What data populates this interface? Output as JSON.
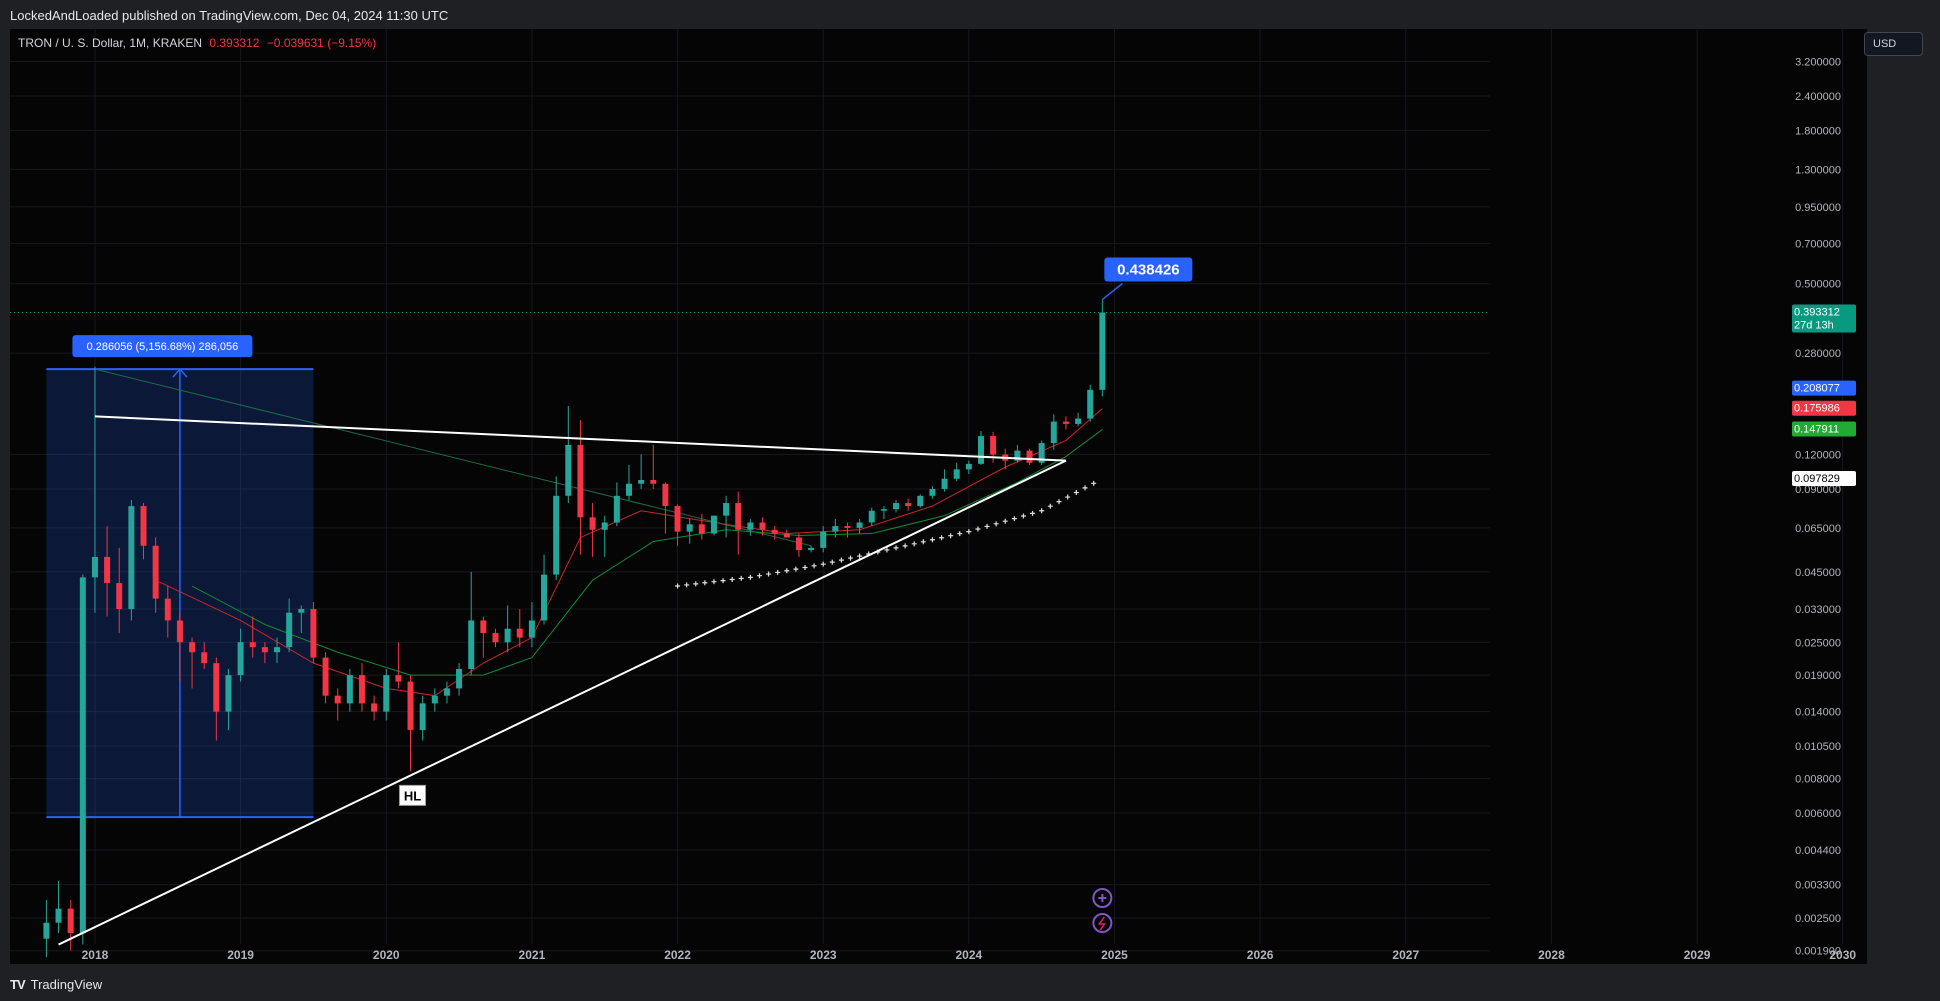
{
  "header": {
    "published": "LockedAndLoaded published on TradingView.com, Dec 04, 2024 11:30 UTC"
  },
  "legend": {
    "symbol": "TRON / U. S. Dollar, 1M, KRAKEN",
    "last": "0.393312",
    "change": "−0.039631 (−9.15%)"
  },
  "currency_button": "USD",
  "footer": {
    "brand": "TradingView"
  },
  "colors": {
    "up": "#26a69a",
    "down": "#f23645",
    "accent": "#2962ff",
    "background": "#050505"
  },
  "chart_data": {
    "type": "candlestick",
    "title": "TRON / U. S. Dollar, 1M, KRAKEN",
    "y_scale": "log",
    "ylim": [
      0.0017,
      4.2
    ],
    "xlim": [
      "2017-06",
      "2030-03"
    ],
    "y_ticks": [
      "3.200000",
      "2.400000",
      "1.800000",
      "1.300000",
      "0.950000",
      "0.700000",
      "0.500000",
      "0.280000",
      "0.120000",
      "0.090000",
      "0.065000",
      "0.045000",
      "0.033000",
      "0.025000",
      "0.019000",
      "0.014000",
      "0.010500",
      "0.008000",
      "0.006000",
      "0.004400",
      "0.003300",
      "0.002500",
      "0.001900"
    ],
    "x_ticks": [
      "2018",
      "2019",
      "2020",
      "2021",
      "2022",
      "2023",
      "2024",
      "2025",
      "2026",
      "2027",
      "2028",
      "2029",
      "2030"
    ],
    "price_labels": [
      {
        "value": "0.393312",
        "sub": "27d 13h",
        "color": "#089981"
      },
      {
        "value": "0.208077",
        "color": "#2962ff"
      },
      {
        "value": "0.175986",
        "color": "#f23645"
      },
      {
        "value": "0.147911",
        "color": "#22ab34"
      },
      {
        "value": "0.097829",
        "color": "#ffffff"
      }
    ],
    "annotations": {
      "measure_label": "0.286056 (5,156.68%) 286,056",
      "target_label": "0.438426",
      "hl_label": "HL"
    },
    "candles": [
      [
        "2017-09",
        0.0021,
        0.0029,
        0.0018,
        0.0024
      ],
      [
        "2017-10",
        0.0024,
        0.0034,
        0.0022,
        0.0027
      ],
      [
        "2017-11",
        0.0027,
        0.0029,
        0.0019,
        0.0022
      ],
      [
        "2017-12",
        0.0022,
        0.044,
        0.002,
        0.043
      ],
      [
        "2018-01",
        0.043,
        0.25,
        0.032,
        0.051
      ],
      [
        "2018-02",
        0.051,
        0.066,
        0.031,
        0.041
      ],
      [
        "2018-03",
        0.041,
        0.055,
        0.027,
        0.033
      ],
      [
        "2018-04",
        0.033,
        0.082,
        0.03,
        0.078
      ],
      [
        "2018-05",
        0.078,
        0.08,
        0.05,
        0.056
      ],
      [
        "2018-06",
        0.056,
        0.06,
        0.032,
        0.036
      ],
      [
        "2018-07",
        0.036,
        0.04,
        0.026,
        0.03
      ],
      [
        "2018-08",
        0.03,
        0.032,
        0.018,
        0.025
      ],
      [
        "2018-09",
        0.025,
        0.026,
        0.017,
        0.023
      ],
      [
        "2018-10",
        0.023,
        0.025,
        0.02,
        0.021
      ],
      [
        "2018-11",
        0.021,
        0.022,
        0.011,
        0.014
      ],
      [
        "2018-12",
        0.014,
        0.02,
        0.012,
        0.019
      ],
      [
        "2019-01",
        0.019,
        0.028,
        0.018,
        0.025
      ],
      [
        "2019-02",
        0.025,
        0.031,
        0.022,
        0.024
      ],
      [
        "2019-03",
        0.024,
        0.025,
        0.021,
        0.023
      ],
      [
        "2019-04",
        0.023,
        0.026,
        0.021,
        0.024
      ],
      [
        "2019-05",
        0.024,
        0.036,
        0.023,
        0.032
      ],
      [
        "2019-06",
        0.032,
        0.034,
        0.027,
        0.033
      ],
      [
        "2019-07",
        0.033,
        0.035,
        0.021,
        0.022
      ],
      [
        "2019-08",
        0.022,
        0.023,
        0.015,
        0.016
      ],
      [
        "2019-09",
        0.016,
        0.017,
        0.013,
        0.015
      ],
      [
        "2019-10",
        0.015,
        0.02,
        0.014,
        0.019
      ],
      [
        "2019-11",
        0.019,
        0.021,
        0.014,
        0.015
      ],
      [
        "2019-12",
        0.015,
        0.016,
        0.013,
        0.014
      ],
      [
        "2020-01",
        0.014,
        0.02,
        0.013,
        0.019
      ],
      [
        "2020-02",
        0.019,
        0.025,
        0.017,
        0.018
      ],
      [
        "2020-03",
        0.018,
        0.019,
        0.0085,
        0.012
      ],
      [
        "2020-04",
        0.012,
        0.016,
        0.011,
        0.015
      ],
      [
        "2020-05",
        0.015,
        0.017,
        0.014,
        0.016
      ],
      [
        "2020-06",
        0.016,
        0.018,
        0.015,
        0.017
      ],
      [
        "2020-07",
        0.017,
        0.021,
        0.016,
        0.02
      ],
      [
        "2020-08",
        0.02,
        0.045,
        0.019,
        0.03
      ],
      [
        "2020-09",
        0.03,
        0.031,
        0.022,
        0.027
      ],
      [
        "2020-10",
        0.027,
        0.028,
        0.024,
        0.025
      ],
      [
        "2020-11",
        0.025,
        0.034,
        0.023,
        0.028
      ],
      [
        "2020-12",
        0.028,
        0.033,
        0.024,
        0.026
      ],
      [
        "2021-01",
        0.026,
        0.035,
        0.024,
        0.03
      ],
      [
        "2021-02",
        0.03,
        0.052,
        0.029,
        0.044
      ],
      [
        "2021-03",
        0.044,
        0.1,
        0.042,
        0.085
      ],
      [
        "2021-04",
        0.085,
        0.18,
        0.08,
        0.13
      ],
      [
        "2021-05",
        0.13,
        0.16,
        0.052,
        0.071
      ],
      [
        "2021-06",
        0.071,
        0.08,
        0.051,
        0.064
      ],
      [
        "2021-07",
        0.064,
        0.072,
        0.051,
        0.068
      ],
      [
        "2021-08",
        0.068,
        0.095,
        0.066,
        0.085
      ],
      [
        "2021-09",
        0.085,
        0.11,
        0.082,
        0.094
      ],
      [
        "2021-10",
        0.094,
        0.12,
        0.09,
        0.097
      ],
      [
        "2021-11",
        0.097,
        0.13,
        0.09,
        0.094
      ],
      [
        "2021-12",
        0.094,
        0.095,
        0.062,
        0.078
      ],
      [
        "2022-01",
        0.078,
        0.079,
        0.056,
        0.063
      ],
      [
        "2022-02",
        0.063,
        0.07,
        0.057,
        0.067
      ],
      [
        "2022-03",
        0.067,
        0.073,
        0.059,
        0.062
      ],
      [
        "2022-04",
        0.062,
        0.072,
        0.061,
        0.072
      ],
      [
        "2022-05",
        0.072,
        0.085,
        0.06,
        0.08
      ],
      [
        "2022-06",
        0.08,
        0.088,
        0.052,
        0.064
      ],
      [
        "2022-07",
        0.064,
        0.07,
        0.061,
        0.068
      ],
      [
        "2022-08",
        0.068,
        0.071,
        0.061,
        0.064
      ],
      [
        "2022-09",
        0.064,
        0.066,
        0.059,
        0.062
      ],
      [
        "2022-10",
        0.062,
        0.064,
        0.06,
        0.06
      ],
      [
        "2022-11",
        0.06,
        0.062,
        0.051,
        0.054
      ],
      [
        "2022-12",
        0.054,
        0.056,
        0.053,
        0.055
      ],
      [
        "2023-01",
        0.055,
        0.066,
        0.053,
        0.063
      ],
      [
        "2023-02",
        0.063,
        0.07,
        0.06,
        0.066
      ],
      [
        "2023-03",
        0.066,
        0.068,
        0.06,
        0.065
      ],
      [
        "2023-04",
        0.065,
        0.07,
        0.062,
        0.068
      ],
      [
        "2023-05",
        0.068,
        0.077,
        0.066,
        0.075
      ],
      [
        "2023-06",
        0.075,
        0.078,
        0.07,
        0.076
      ],
      [
        "2023-07",
        0.076,
        0.082,
        0.074,
        0.08
      ],
      [
        "2023-08",
        0.08,
        0.083,
        0.075,
        0.078
      ],
      [
        "2023-09",
        0.078,
        0.086,
        0.077,
        0.085
      ],
      [
        "2023-10",
        0.085,
        0.092,
        0.083,
        0.09
      ],
      [
        "2023-11",
        0.09,
        0.106,
        0.088,
        0.098
      ],
      [
        "2023-12",
        0.098,
        0.112,
        0.096,
        0.106
      ],
      [
        "2024-01",
        0.106,
        0.114,
        0.102,
        0.111
      ],
      [
        "2024-02",
        0.111,
        0.146,
        0.11,
        0.14
      ],
      [
        "2024-03",
        0.14,
        0.145,
        0.112,
        0.12
      ],
      [
        "2024-04",
        0.12,
        0.126,
        0.106,
        0.114
      ],
      [
        "2024-05",
        0.114,
        0.13,
        0.112,
        0.124
      ],
      [
        "2024-06",
        0.124,
        0.126,
        0.11,
        0.112
      ],
      [
        "2024-07",
        0.112,
        0.135,
        0.11,
        0.132
      ],
      [
        "2024-08",
        0.132,
        0.168,
        0.125,
        0.158
      ],
      [
        "2024-09",
        0.158,
        0.165,
        0.148,
        0.155
      ],
      [
        "2024-10",
        0.155,
        0.17,
        0.152,
        0.162
      ],
      [
        "2024-11",
        0.162,
        0.215,
        0.158,
        0.206
      ],
      [
        "2024-12",
        0.206,
        0.438,
        0.195,
        0.393
      ]
    ],
    "ma_red": [
      [
        "2018-06",
        0.042
      ],
      [
        "2019-01",
        0.03
      ],
      [
        "2019-07",
        0.021
      ],
      [
        "2020-01",
        0.017
      ],
      [
        "2020-05",
        0.016
      ],
      [
        "2020-09",
        0.021
      ],
      [
        "2021-01",
        0.026
      ],
      [
        "2021-05",
        0.06
      ],
      [
        "2021-10",
        0.075
      ],
      [
        "2022-04",
        0.068
      ],
      [
        "2022-10",
        0.062
      ],
      [
        "2023-04",
        0.064
      ],
      [
        "2023-10",
        0.078
      ],
      [
        "2024-04",
        0.108
      ],
      [
        "2024-09",
        0.135
      ],
      [
        "2024-12",
        0.176
      ]
    ],
    "ma_green": [
      [
        "2018-09",
        0.04
      ],
      [
        "2019-03",
        0.029
      ],
      [
        "2019-09",
        0.023
      ],
      [
        "2020-03",
        0.019
      ],
      [
        "2020-09",
        0.019
      ],
      [
        "2021-01",
        0.022
      ],
      [
        "2021-06",
        0.042
      ],
      [
        "2021-11",
        0.058
      ],
      [
        "2022-05",
        0.064
      ],
      [
        "2022-11",
        0.061
      ],
      [
        "2023-05",
        0.062
      ],
      [
        "2023-11",
        0.072
      ],
      [
        "2024-05",
        0.095
      ],
      [
        "2024-09",
        0.118
      ],
      [
        "2024-12",
        0.148
      ]
    ],
    "dots": [
      [
        "2022-01",
        0.04
      ],
      [
        "2022-07",
        0.043
      ],
      [
        "2023-01",
        0.048
      ],
      [
        "2023-07",
        0.055
      ],
      [
        "2024-01",
        0.063
      ],
      [
        "2024-07",
        0.075
      ],
      [
        "2024-12",
        0.098
      ]
    ],
    "trendline_upper": [
      [
        "2018-01",
        0.165
      ],
      [
        "2024-09",
        0.114
      ]
    ],
    "trendline_lower": [
      [
        "2017-10",
        0.002
      ],
      [
        "2024-09",
        0.114
      ]
    ],
    "trendline_green": [
      [
        "2018-01",
        0.245
      ],
      [
        "2022-12",
        0.056
      ]
    ],
    "measure_box": {
      "from": "2017-09",
      "to": "2019-07",
      "top": 0.245,
      "bottom": 0.0058
    }
  }
}
